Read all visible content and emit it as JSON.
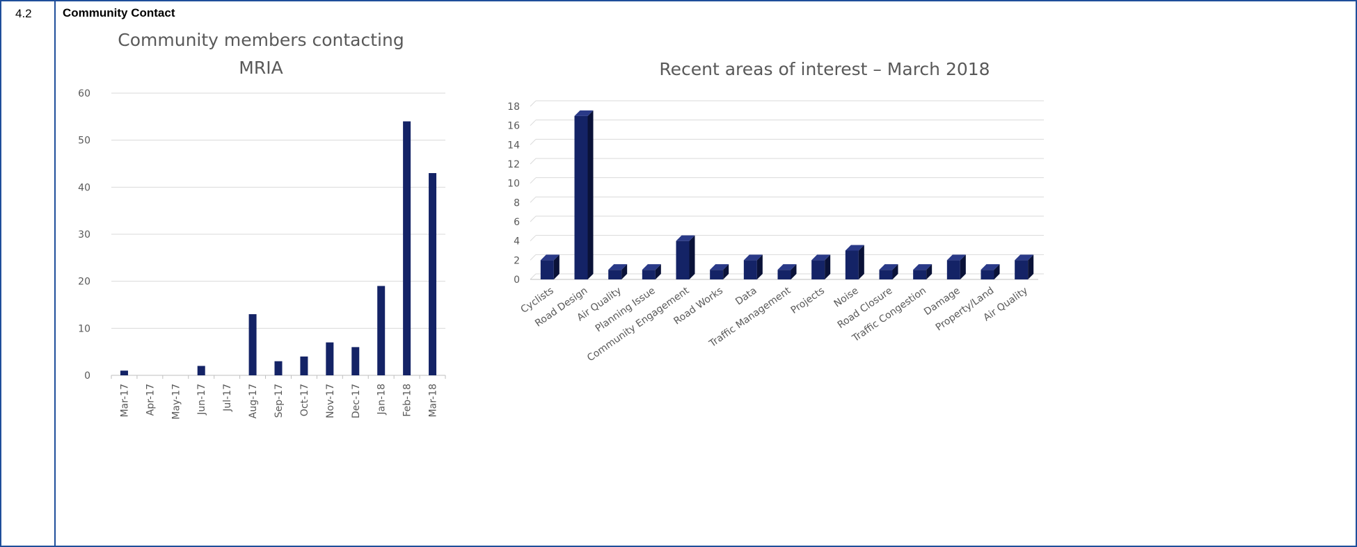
{
  "section": {
    "number": "4.2",
    "title": "Community Contact"
  },
  "colors": {
    "border": "#1f4e9a",
    "bar": "#142366",
    "bar_side": "#0a1238",
    "bar_top": "#2a3a88",
    "grid": "#d9d9d9",
    "text": "#595959"
  },
  "chart_data": [
    {
      "type": "bar",
      "title": "Community members contacting MRIA",
      "title_lines": [
        "Community members contacting",
        "MRIA"
      ],
      "categories": [
        "Mar-17",
        "Apr-17",
        "May-17",
        "Jun-17",
        "Jul-17",
        "Aug-17",
        "Sep-17",
        "Oct-17",
        "Nov-17",
        "Dec-17",
        "Jan-18",
        "Feb-18",
        "Mar-18"
      ],
      "values": [
        1,
        0,
        0,
        2,
        0,
        13,
        3,
        4,
        7,
        6,
        19,
        54,
        43
      ],
      "ylim": [
        0,
        60
      ],
      "yticks": [
        0,
        10,
        20,
        30,
        40,
        50,
        60
      ],
      "xlabel": "",
      "ylabel": "",
      "grid": true,
      "x_label_rotation": "vertical"
    },
    {
      "type": "bar",
      "style": "3d",
      "title": "Recent areas of interest – March 2018",
      "categories": [
        "Cyclists",
        "Road Design",
        "Air Quality",
        "Planning Issue",
        "Community Engagement",
        "Road Works",
        "Data",
        "Traffic Management",
        "Projects",
        "Noise",
        "Road Closure",
        "Traffic Congestion",
        "Damage",
        "Property/Land",
        "Air Quality"
      ],
      "values": [
        2,
        17,
        1,
        1,
        4,
        1,
        2,
        1,
        2,
        3,
        1,
        1,
        2,
        1,
        2
      ],
      "ylim": [
        0,
        18
      ],
      "yticks": [
        0,
        2,
        4,
        6,
        8,
        10,
        12,
        14,
        16,
        18
      ],
      "xlabel": "",
      "ylabel": "",
      "grid": true,
      "x_label_rotation": "diagonal"
    }
  ]
}
